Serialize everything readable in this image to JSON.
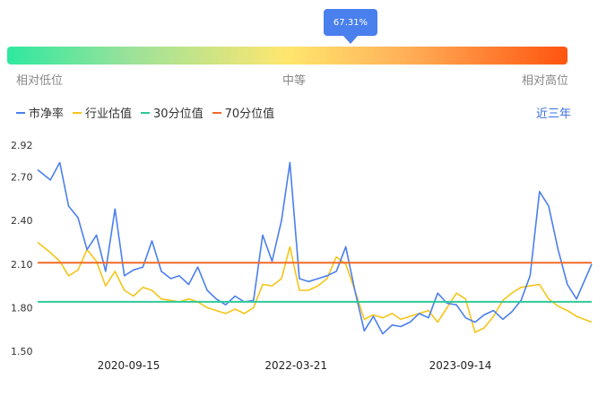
{
  "gauge": {
    "percentile": 67.31,
    "percentile_text": "67.31%",
    "low_label": "相对低位",
    "mid_label": "中等",
    "high_label": "相对高位"
  },
  "period_button": "近三年",
  "colors": {
    "pe": "#4a7fee",
    "industry": "#f5c518",
    "p30": "#2ec99a",
    "p70": "#f06a28"
  },
  "chart_data": {
    "type": "line",
    "title": "",
    "ylim": [
      1.5,
      2.92
    ],
    "y_ticks": [
      "2.92",
      "2.70",
      "2.40",
      "2.10",
      "1.80",
      "1.50"
    ],
    "y_tick_values": [
      2.92,
      2.7,
      2.4,
      2.1,
      1.8,
      1.5
    ],
    "x_ticks": [
      "2020-09-15",
      "2022-03-21",
      "2023-09-14"
    ],
    "x_range": [
      "2019-11-20",
      "2024-11-20"
    ],
    "legend": [
      "市净率",
      "行业估值",
      "30分位值",
      "70分位值"
    ],
    "series": [
      {
        "name": "市净率",
        "x": [
          "2019-11-20",
          "2020-01-01",
          "2020-02-01",
          "2020-03-01",
          "2020-04-01",
          "2020-05-01",
          "2020-06-01",
          "2020-07-01",
          "2020-08-01",
          "2020-09-01",
          "2020-10-01",
          "2020-11-01",
          "2020-12-01",
          "2021-01-01",
          "2021-02-01",
          "2021-03-01",
          "2021-04-01",
          "2021-05-01",
          "2021-06-01",
          "2021-07-01",
          "2021-08-01",
          "2021-09-01",
          "2021-10-01",
          "2021-11-01",
          "2021-12-01",
          "2022-01-01",
          "2022-02-01",
          "2022-03-01",
          "2022-04-01",
          "2022-05-01",
          "2022-06-01",
          "2022-07-01",
          "2022-08-01",
          "2022-09-01",
          "2022-10-01",
          "2022-11-01",
          "2022-12-01",
          "2023-01-01",
          "2023-02-01",
          "2023-03-01",
          "2023-04-01",
          "2023-05-01",
          "2023-06-01",
          "2023-07-01",
          "2023-08-01",
          "2023-09-01",
          "2023-10-01",
          "2023-11-01",
          "2023-12-01",
          "2024-01-01",
          "2024-02-01",
          "2024-03-01",
          "2024-04-01",
          "2024-05-01",
          "2024-06-01",
          "2024-07-01",
          "2024-08-01",
          "2024-09-01",
          "2024-10-01",
          "2024-11-20"
        ],
        "values": [
          2.75,
          2.68,
          2.8,
          2.5,
          2.42,
          2.2,
          2.3,
          2.05,
          2.48,
          2.02,
          2.06,
          2.08,
          2.26,
          2.05,
          2.0,
          2.02,
          1.96,
          2.08,
          1.92,
          1.86,
          1.82,
          1.88,
          1.84,
          1.85,
          2.3,
          2.12,
          2.4,
          2.8,
          2.0,
          1.98,
          2.0,
          2.02,
          2.05,
          2.22,
          1.92,
          1.64,
          1.74,
          1.62,
          1.68,
          1.67,
          1.7,
          1.76,
          1.73,
          1.9,
          1.83,
          1.82,
          1.73,
          1.7,
          1.75,
          1.78,
          1.72,
          1.77,
          1.85,
          2.02,
          2.6,
          2.5,
          2.2,
          1.96,
          1.86,
          2.1
        ]
      },
      {
        "name": "行业估值",
        "x": [
          "2019-11-20",
          "2020-01-01",
          "2020-02-01",
          "2020-03-01",
          "2020-04-01",
          "2020-05-01",
          "2020-06-01",
          "2020-07-01",
          "2020-08-01",
          "2020-09-01",
          "2020-10-01",
          "2020-11-01",
          "2020-12-01",
          "2021-01-01",
          "2021-02-01",
          "2021-03-01",
          "2021-04-01",
          "2021-05-01",
          "2021-06-01",
          "2021-07-01",
          "2021-08-01",
          "2021-09-01",
          "2021-10-01",
          "2021-11-01",
          "2021-12-01",
          "2022-01-01",
          "2022-02-01",
          "2022-03-01",
          "2022-04-01",
          "2022-05-01",
          "2022-06-01",
          "2022-07-01",
          "2022-08-01",
          "2022-09-01",
          "2022-10-01",
          "2022-11-01",
          "2022-12-01",
          "2023-01-01",
          "2023-02-01",
          "2023-03-01",
          "2023-04-01",
          "2023-05-01",
          "2023-06-01",
          "2023-07-01",
          "2023-08-01",
          "2023-09-01",
          "2023-10-01",
          "2023-11-01",
          "2023-12-01",
          "2024-01-01",
          "2024-02-01",
          "2024-03-01",
          "2024-04-01",
          "2024-05-01",
          "2024-06-01",
          "2024-07-01",
          "2024-08-01",
          "2024-09-01",
          "2024-10-01",
          "2024-11-20"
        ],
        "values": [
          2.25,
          2.18,
          2.12,
          2.02,
          2.06,
          2.2,
          2.12,
          1.95,
          2.05,
          1.92,
          1.88,
          1.94,
          1.92,
          1.86,
          1.85,
          1.84,
          1.86,
          1.84,
          1.8,
          1.78,
          1.76,
          1.79,
          1.76,
          1.8,
          1.96,
          1.95,
          2.0,
          2.22,
          1.92,
          1.92,
          1.95,
          2.0,
          2.15,
          2.1,
          1.92,
          1.72,
          1.75,
          1.73,
          1.76,
          1.72,
          1.74,
          1.76,
          1.78,
          1.7,
          1.8,
          1.9,
          1.86,
          1.63,
          1.66,
          1.74,
          1.85,
          1.9,
          1.94,
          1.95,
          1.96,
          1.86,
          1.81,
          1.78,
          1.74,
          1.7
        ]
      },
      {
        "name": "30分位值",
        "x": [
          "2019-11-20",
          "2024-11-20"
        ],
        "values": [
          1.84,
          1.84
        ]
      },
      {
        "name": "70分位值",
        "x": [
          "2019-11-20",
          "2024-11-20"
        ],
        "values": [
          2.11,
          2.11
        ]
      }
    ]
  }
}
